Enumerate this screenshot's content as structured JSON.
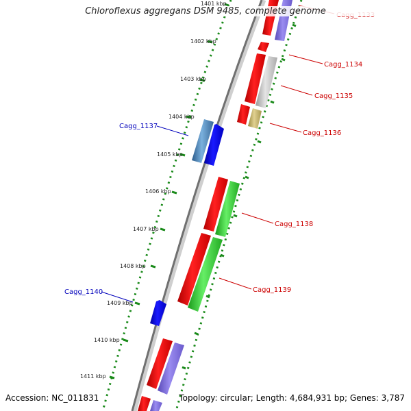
{
  "title": "Chloroflexus aggregans DSM 9485, complete genome",
  "footer": {
    "accession": "Accession: NC_011831",
    "summary": "Topology: circular; Length: 4,684,931 bp; Genes: 3,787"
  },
  "ticks": [
    {
      "label": "1401 kbp"
    },
    {
      "label": "1402 kbp"
    },
    {
      "label": "1403 kbp"
    },
    {
      "label": "1404 kbp"
    },
    {
      "label": "1405 kbp"
    },
    {
      "label": "1406 kbp"
    },
    {
      "label": "1407 kbp"
    },
    {
      "label": "1408 kbp"
    },
    {
      "label": "1409 kbp"
    },
    {
      "label": "1410 kbp"
    },
    {
      "label": "1411 kbp"
    }
  ],
  "genes": [
    {
      "label": "Cagg_1133",
      "color": "#cc0000"
    },
    {
      "label": "Cagg_1134",
      "color": "#cc0000"
    },
    {
      "label": "Cagg_1135",
      "color": "#cc0000"
    },
    {
      "label": "Cagg_1136",
      "color": "#cc0000"
    },
    {
      "label": "Cagg_1137",
      "color": "#0000bb"
    },
    {
      "label": "Cagg_1138",
      "color": "#cc0000"
    },
    {
      "label": "Cagg_1139",
      "color": "#cc0000"
    },
    {
      "label": "Cagg_1140",
      "color": "#0000bb"
    }
  ],
  "colors": {
    "forward_cds": "#ff0000",
    "reverse_cds": "#0000ee",
    "feature_purple": "#8070e0",
    "feature_gray": "#c0c0c0",
    "feature_khaki": "#c8b870",
    "feature_green": "#33cc33",
    "feature_steelblue": "#4a86b8",
    "backbone": "#777777",
    "dots": "#1a8a1a"
  }
}
